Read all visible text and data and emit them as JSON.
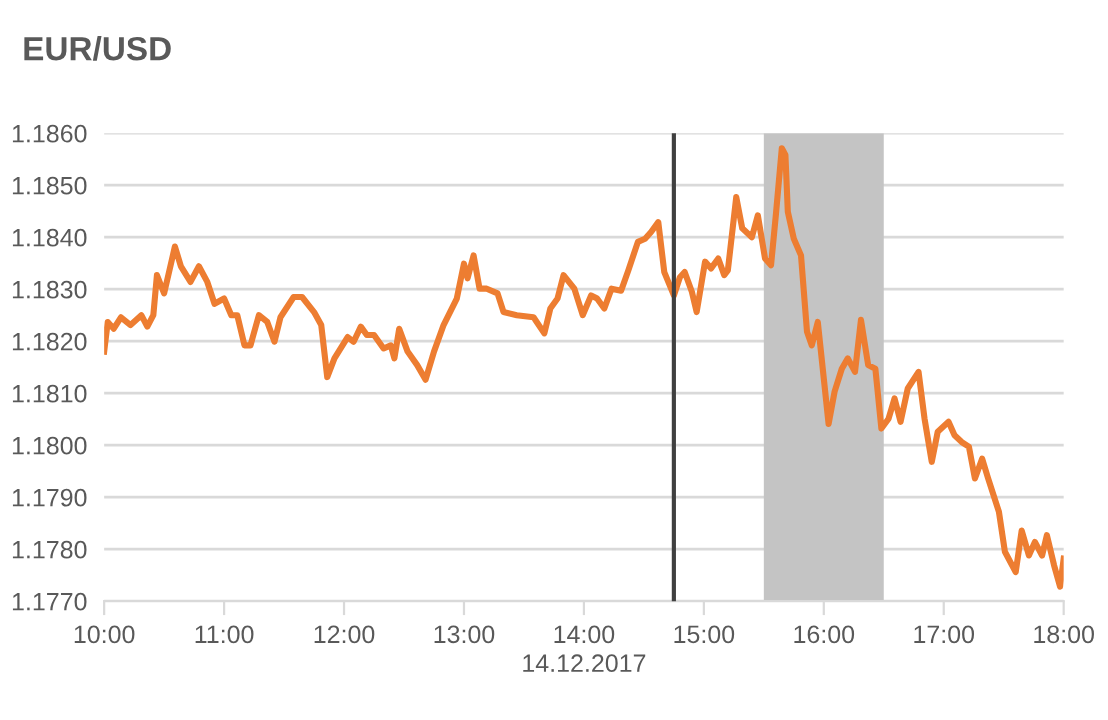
{
  "chart_data": {
    "type": "line",
    "title": "EUR/USD",
    "xlabel": "14.12.2017",
    "x": [
      10.0,
      10.03,
      10.08,
      10.14,
      10.22,
      10.31,
      10.36,
      10.41,
      10.44,
      10.5,
      10.59,
      10.64,
      10.72,
      10.79,
      10.86,
      10.92,
      11.0,
      11.06,
      11.11,
      11.17,
      11.22,
      11.29,
      11.36,
      11.42,
      11.47,
      11.58,
      11.65,
      11.75,
      11.81,
      11.86,
      11.92,
      12.03,
      12.08,
      12.14,
      12.19,
      12.25,
      12.33,
      12.39,
      12.42,
      12.46,
      12.53,
      12.61,
      12.68,
      12.75,
      12.83,
      12.94,
      13.0,
      13.03,
      13.08,
      13.13,
      13.19,
      13.28,
      13.33,
      13.44,
      13.58,
      13.67,
      13.72,
      13.78,
      13.83,
      13.92,
      13.99,
      14.06,
      14.11,
      14.17,
      14.23,
      14.31,
      14.37,
      14.45,
      14.51,
      14.56,
      14.62,
      14.67,
      14.75,
      14.8,
      14.84,
      14.9,
      14.94,
      15.01,
      15.06,
      15.12,
      15.17,
      15.2,
      15.27,
      15.32,
      15.4,
      15.45,
      15.51,
      15.56,
      15.6,
      15.65,
      15.68,
      15.7,
      15.75,
      15.81,
      15.86,
      15.9,
      15.95,
      16.04,
      16.09,
      16.15,
      16.2,
      16.26,
      16.31,
      16.37,
      16.43,
      16.48,
      16.54,
      16.59,
      16.64,
      16.7,
      16.79,
      16.84,
      16.9,
      16.95,
      17.04,
      17.09,
      17.15,
      17.21,
      17.26,
      17.32,
      17.37,
      17.46,
      17.51,
      17.6,
      17.65,
      17.71,
      17.76,
      17.82,
      17.86,
      17.92,
      17.97,
      18.0
    ],
    "series": [
      {
        "color": "#ed7d31",
        "values": [
          1.1818,
          1.18237,
          1.18224,
          1.18246,
          1.18231,
          1.1825,
          1.18228,
          1.1825,
          1.18327,
          1.18292,
          1.18382,
          1.18344,
          1.18314,
          1.18344,
          1.18314,
          1.18272,
          1.18282,
          1.1825,
          1.1825,
          1.18192,
          1.18192,
          1.1825,
          1.18237,
          1.18199,
          1.18246,
          1.18285,
          1.18285,
          1.18256,
          1.18231,
          1.18131,
          1.18167,
          1.18208,
          1.18199,
          1.18228,
          1.18212,
          1.18212,
          1.18186,
          1.18192,
          1.18167,
          1.18224,
          1.1818,
          1.18154,
          1.18126,
          1.1818,
          1.18231,
          1.18282,
          1.18349,
          1.18321,
          1.18365,
          1.18301,
          1.18301,
          1.18292,
          1.18256,
          1.1825,
          1.18246,
          1.18215,
          1.18263,
          1.18282,
          1.18327,
          1.18301,
          1.1825,
          1.18288,
          1.18282,
          1.18263,
          1.18301,
          1.18297,
          1.18336,
          1.18391,
          1.18397,
          1.1841,
          1.18429,
          1.18333,
          1.18288,
          1.18323,
          1.18333,
          1.18295,
          1.18256,
          1.18353,
          1.1834,
          1.18359,
          1.18327,
          1.18336,
          1.18477,
          1.18417,
          1.184,
          1.18442,
          1.18359,
          1.18346,
          1.18442,
          1.18571,
          1.18558,
          1.18449,
          1.18397,
          1.18365,
          1.18218,
          1.18192,
          1.18237,
          1.18041,
          1.18103,
          1.18147,
          1.18167,
          1.18141,
          1.18241,
          1.18154,
          1.18147,
          1.18032,
          1.18051,
          1.1809,
          1.18045,
          1.18109,
          1.18141,
          1.18051,
          1.17968,
          1.18026,
          1.18045,
          1.18019,
          1.18006,
          1.17997,
          1.17936,
          1.17974,
          1.17936,
          1.17872,
          1.17795,
          1.17756,
          1.17836,
          1.17788,
          1.17814,
          1.17788,
          1.17827,
          1.17769,
          1.17728,
          1.17782
        ]
      }
    ],
    "xlim": [
      10,
      18
    ],
    "xticks": [
      {
        "value": 10,
        "label": "10:00"
      },
      {
        "value": 11,
        "label": "11:00"
      },
      {
        "value": 12,
        "label": "12:00"
      },
      {
        "value": 13,
        "label": "13:00"
      },
      {
        "value": 14,
        "label": "14:00"
      },
      {
        "value": 15,
        "label": "15:00"
      },
      {
        "value": 16,
        "label": "16:00"
      },
      {
        "value": 17,
        "label": "17:00"
      },
      {
        "value": 18,
        "label": "18:00"
      }
    ],
    "ylim": [
      1.177,
      1.186
    ],
    "yticks": [
      {
        "value": 1.177,
        "label": "1.1770"
      },
      {
        "value": 1.178,
        "label": "1.1780"
      },
      {
        "value": 1.179,
        "label": "1.1790"
      },
      {
        "value": 1.18,
        "label": "1.1800"
      },
      {
        "value": 1.181,
        "label": "1.1810"
      },
      {
        "value": 1.182,
        "label": "1.1820"
      },
      {
        "value": 1.183,
        "label": "1.1830"
      },
      {
        "value": 1.184,
        "label": "1.1840"
      },
      {
        "value": 1.185,
        "label": "1.1850"
      },
      {
        "value": 1.186,
        "label": "1.1860"
      }
    ],
    "ref_lines": [
      {
        "axis": "x",
        "value": 14.75,
        "color": "#404040"
      }
    ],
    "bands": [
      {
        "axis": "x",
        "from": 15.5,
        "to": 16.5,
        "color": "#c4c4c4"
      }
    ],
    "grid": "y",
    "legend": false,
    "marker": "none",
    "line_style": "solid"
  }
}
